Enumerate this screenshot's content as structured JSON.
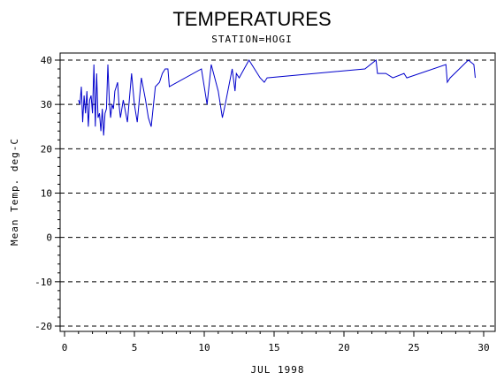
{
  "chart_data": {
    "type": "line",
    "title": "TEMPERATURES",
    "subtitle": "STATION=HOGI",
    "xlabel": "JUL 1998",
    "ylabel": "Mean Temp. deg-C",
    "xlim": [
      0,
      30
    ],
    "ylim": [
      -20,
      40
    ],
    "x_ticks": [
      "0",
      "5",
      "10",
      "15",
      "20",
      "25",
      "30"
    ],
    "y_ticks": [
      "-20",
      "-10",
      "0",
      "10",
      "20",
      "30",
      "40"
    ],
    "grid": "horizontal dashed",
    "series": [
      {
        "color": "#0000cc",
        "x": [
          1.0,
          1.1,
          1.2,
          1.3,
          1.4,
          1.5,
          1.6,
          1.7,
          1.8,
          1.9,
          2.0,
          2.1,
          2.2,
          2.3,
          2.4,
          2.5,
          2.6,
          2.7,
          2.8,
          2.9,
          3.0,
          3.1,
          3.2,
          3.3,
          3.4,
          3.5,
          3.6,
          3.7,
          3.8,
          3.9,
          4.0,
          4.2,
          4.5,
          4.8,
          5.0,
          5.2,
          5.5,
          5.8,
          6.0,
          6.2,
          6.5,
          6.8,
          7.0,
          7.2,
          7.4,
          7.5,
          9.8,
          10.2,
          10.5,
          11.0,
          11.3,
          11.5,
          12.0,
          12.2,
          12.3,
          12.5,
          13.2,
          13.4,
          14.0,
          14.3,
          14.5,
          21.5,
          22.3,
          22.4,
          23.0,
          23.5,
          24.3,
          24.5,
          27.3,
          27.4,
          27.6,
          28.9,
          29.3,
          29.4
        ],
        "y": [
          31,
          30,
          34,
          26,
          32,
          28,
          33,
          25,
          31,
          32,
          28,
          39,
          25,
          37,
          27,
          28,
          24,
          29,
          23,
          28,
          29,
          39,
          31,
          27,
          30,
          29,
          33,
          34,
          35,
          30,
          27,
          31,
          26,
          37,
          30,
          26,
          36,
          31,
          27,
          25,
          34,
          35,
          37,
          38,
          38,
          34,
          38,
          30,
          39,
          33,
          27,
          30,
          38,
          33,
          37,
          36,
          40,
          39,
          36,
          35,
          36,
          38,
          40,
          37,
          37,
          36,
          37,
          36,
          39,
          35,
          36,
          40,
          39,
          36
        ]
      }
    ]
  }
}
